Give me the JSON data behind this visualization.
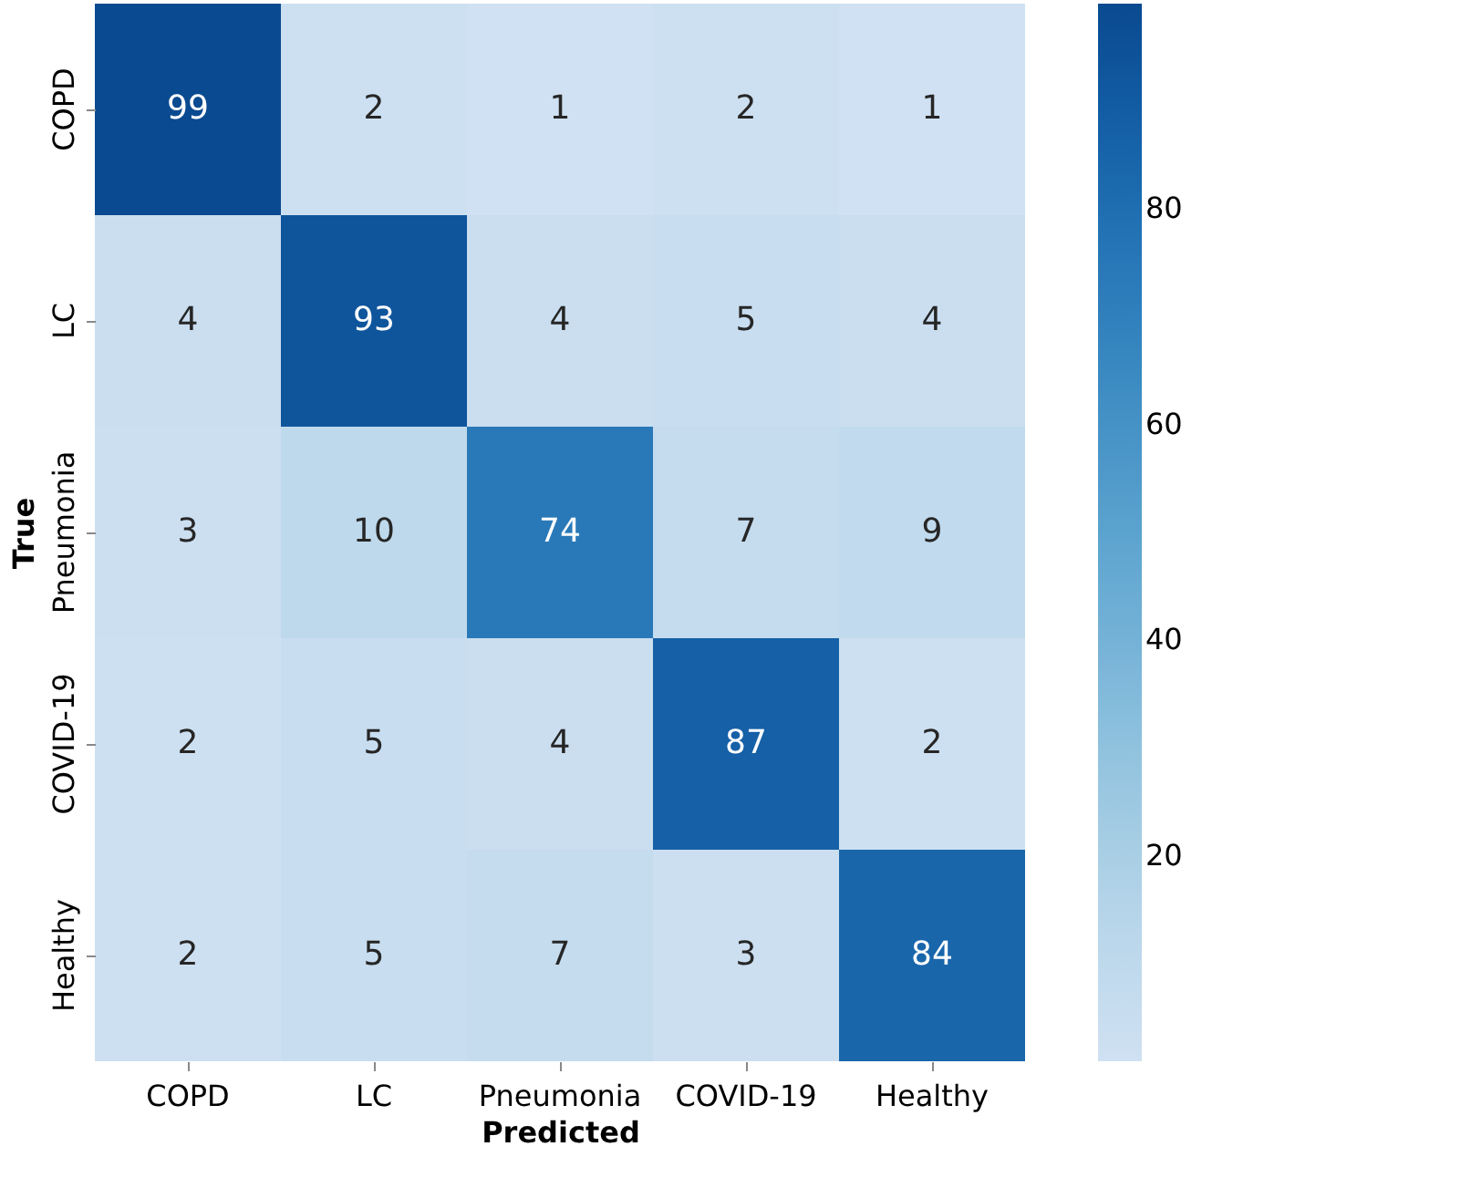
{
  "chart_data": {
    "type": "heatmap",
    "xlabel": "Predicted",
    "ylabel": "True",
    "categories": [
      "COPD",
      "LC",
      "Pneumonia",
      "COVID-19",
      "Healthy"
    ],
    "y_categories": [
      "COPD",
      "LC",
      "Pneumonia",
      "COVID-19",
      "Healthy"
    ],
    "cells": [
      [
        99,
        2,
        1,
        2,
        1
      ],
      [
        4,
        93,
        4,
        5,
        4
      ],
      [
        3,
        10,
        74,
        7,
        9
      ],
      [
        2,
        5,
        4,
        87,
        2
      ],
      [
        2,
        5,
        7,
        3,
        84
      ]
    ],
    "clim": [
      1,
      99
    ],
    "cticks": [
      20,
      40,
      60,
      80
    ],
    "data_labels": true
  }
}
